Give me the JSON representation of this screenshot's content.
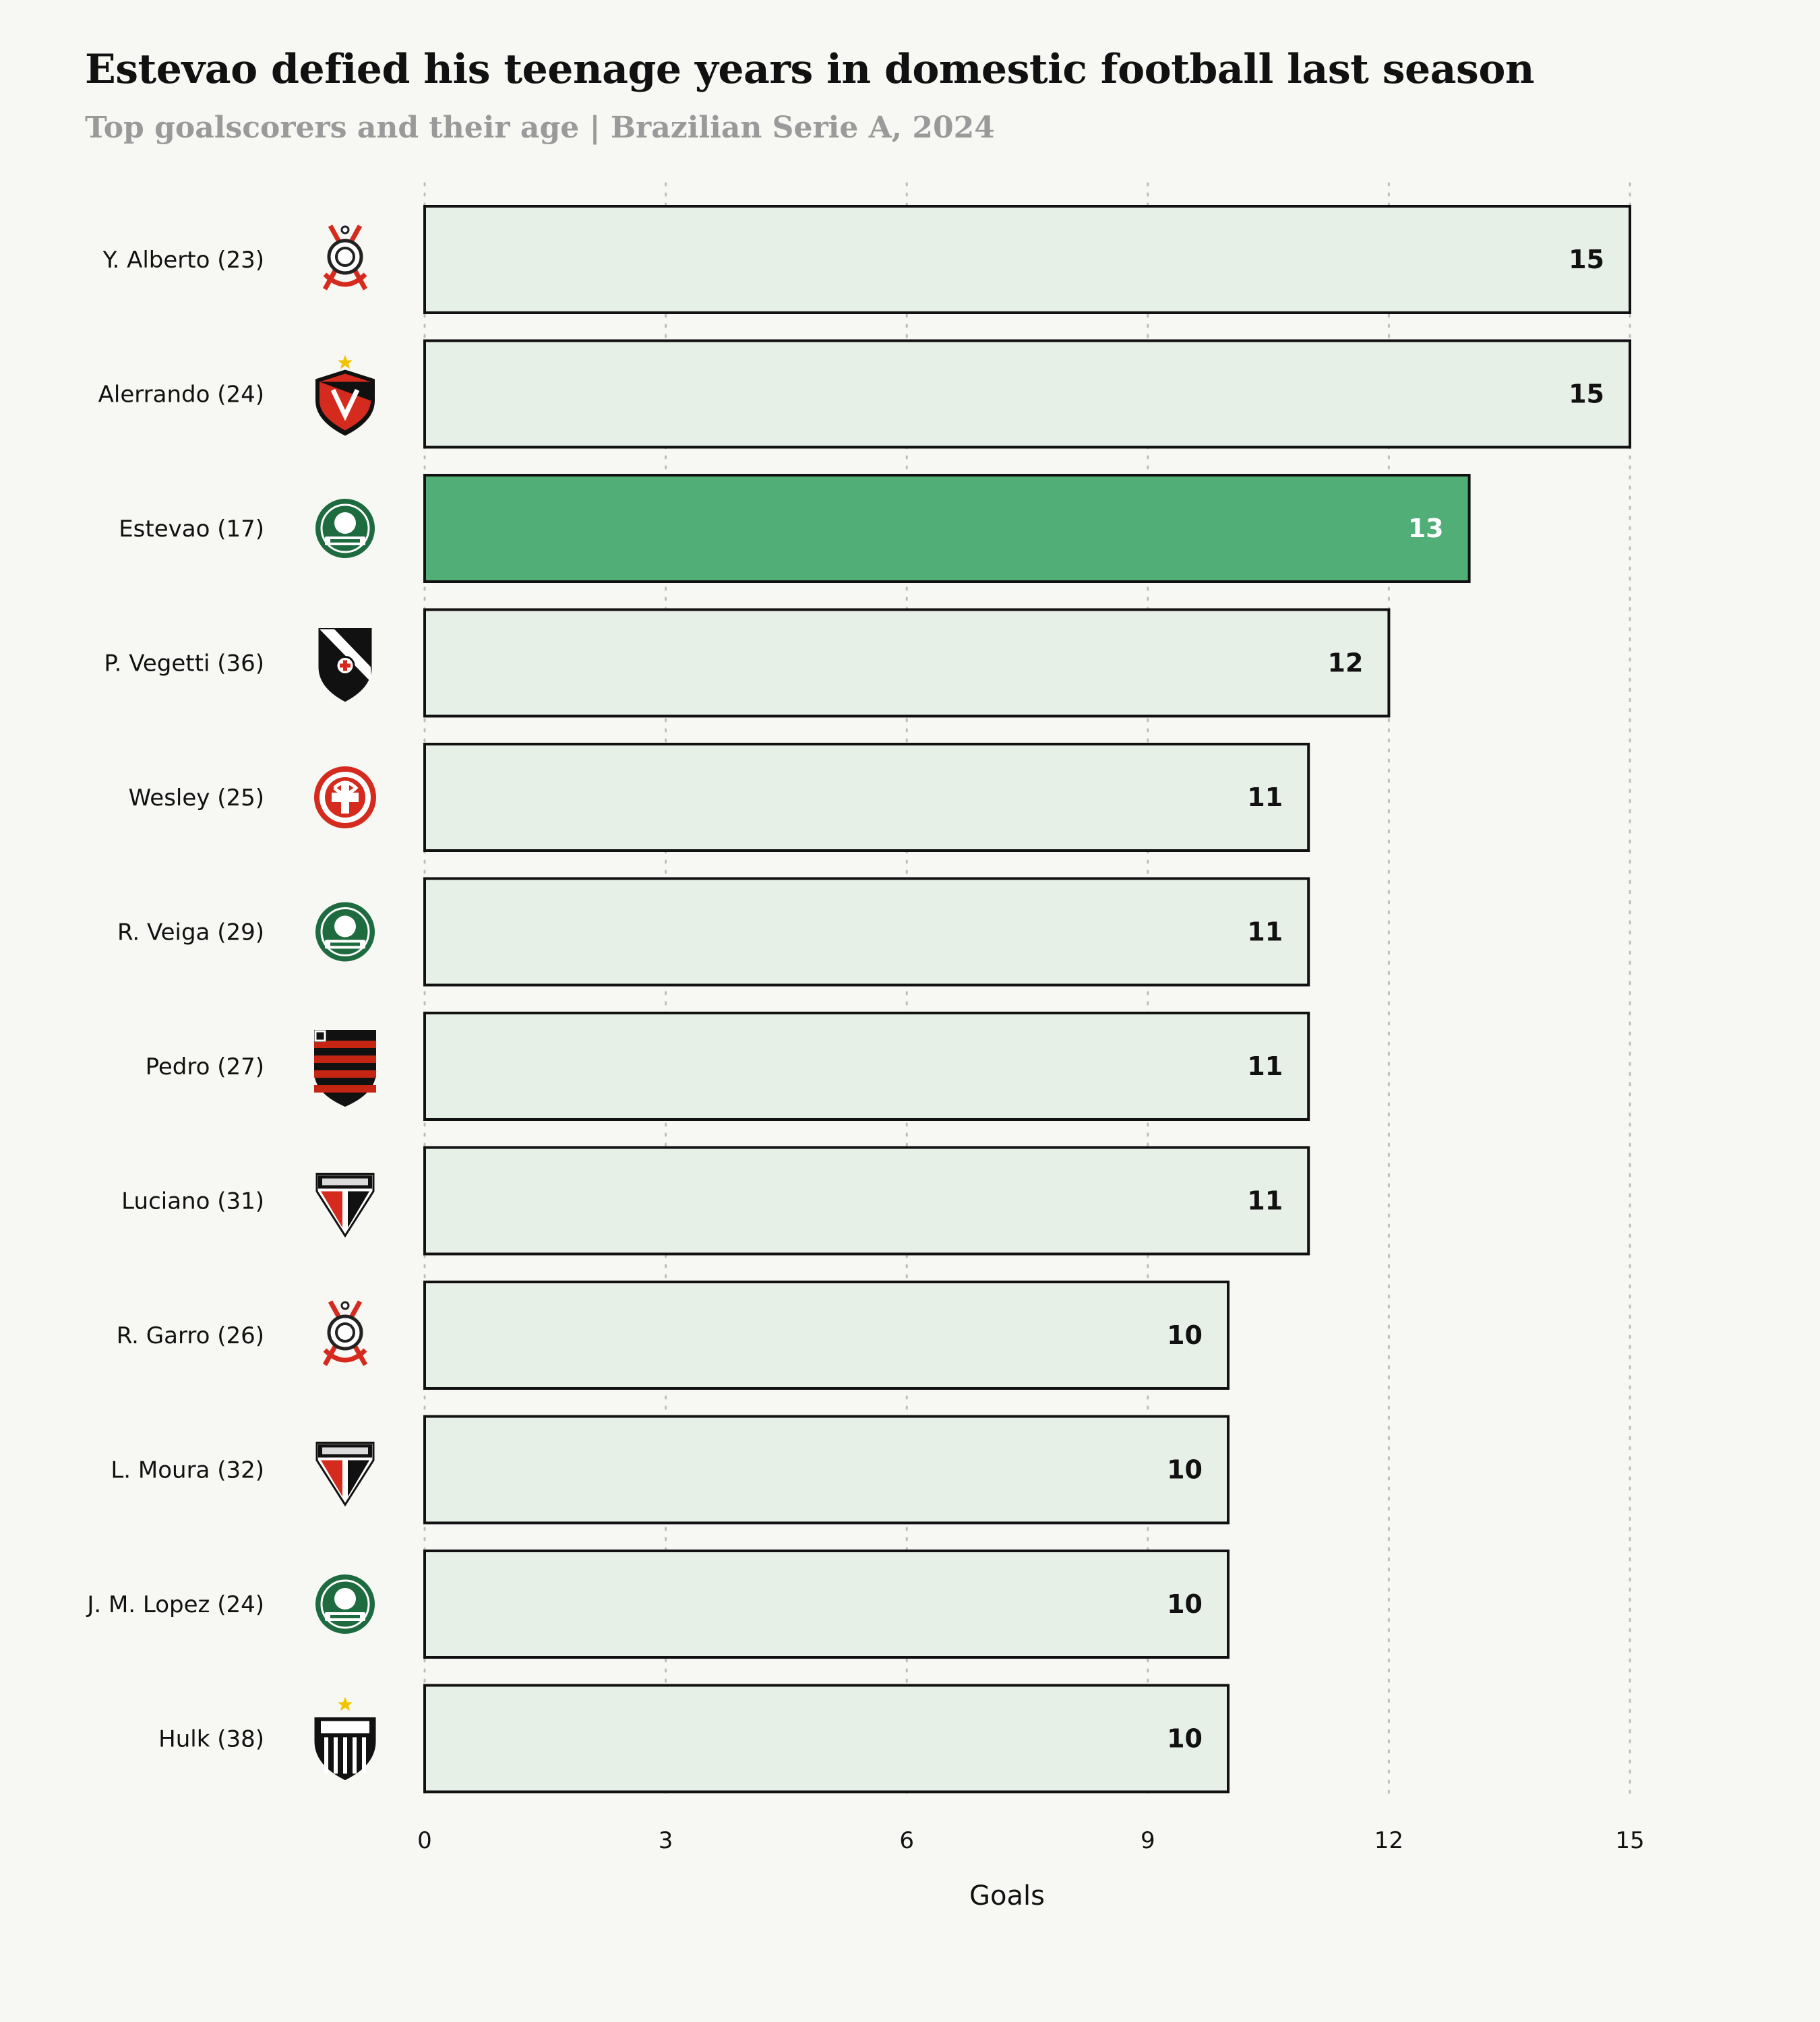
{
  "colors": {
    "background": "#f7f7f3",
    "bar_default": "#e6f0e6",
    "bar_highlight": "#52ae77",
    "bar_stroke": "#111111",
    "grid": "#bdbdbd",
    "subtitle": "#9a9a9a",
    "value_default": "#111111",
    "value_highlight": "#ffffff"
  },
  "chart_data": {
    "type": "bar",
    "orientation": "horizontal",
    "title": "Estevao defied his teenage years in domestic football last season",
    "subtitle": "Top goalscorers and their age | Brazilian Serie A, 2024",
    "xlabel": "Goals",
    "ylabel": "",
    "xlim": [
      0,
      15
    ],
    "xticks": [
      0,
      3,
      6,
      9,
      12,
      15
    ],
    "grid": "vertical dotted",
    "highlight": "Estevao (17)",
    "categories": [
      "Y. Alberto (23)",
      "Alerrando (24)",
      "Estevao (17)",
      "P. Vegetti (36)",
      "Wesley (25)",
      "R. Veiga (29)",
      "Pedro (27)",
      "Luciano (31)",
      "R. Garro (26)",
      "L. Moura (32)",
      "J. M. Lopez (24)",
      "Hulk (38)"
    ],
    "values": [
      15,
      15,
      13,
      12,
      11,
      11,
      11,
      11,
      10,
      10,
      10,
      10
    ],
    "club_icons": [
      "corinthians-crest-icon",
      "vitoria-crest-icon",
      "palmeiras-crest-icon",
      "vasco-crest-icon",
      "internacional-crest-icon",
      "palmeiras-crest-icon",
      "flamengo-crest-icon",
      "sao-paulo-crest-icon",
      "corinthians-crest-icon",
      "sao-paulo-crest-icon",
      "palmeiras-crest-icon",
      "atletico-mineiro-crest-icon"
    ]
  }
}
